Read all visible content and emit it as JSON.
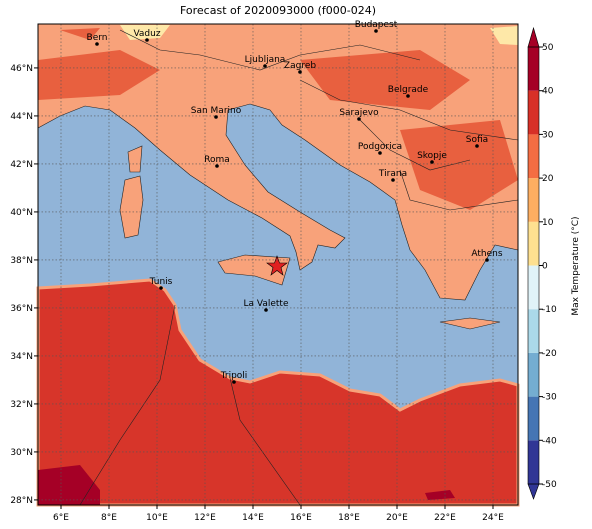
{
  "title": "Forecast of 2020093000 (f000-024)",
  "lon_ticks": [
    {
      "value": 6,
      "label": "6°E"
    },
    {
      "value": 8,
      "label": "8°E"
    },
    {
      "value": 10,
      "label": "10°E"
    },
    {
      "value": 12,
      "label": "12°E"
    },
    {
      "value": 14,
      "label": "14°E"
    },
    {
      "value": 16,
      "label": "16°E"
    },
    {
      "value": 18,
      "label": "18°E"
    },
    {
      "value": 20,
      "label": "20°E"
    },
    {
      "value": 22,
      "label": "22°E"
    },
    {
      "value": 24,
      "label": "24°E"
    }
  ],
  "lat_ticks": [
    {
      "value": 28,
      "label": "28°N"
    },
    {
      "value": 30,
      "label": "30°N"
    },
    {
      "value": 32,
      "label": "32°N"
    },
    {
      "value": 34,
      "label": "34°N"
    },
    {
      "value": 36,
      "label": "36°N"
    },
    {
      "value": 38,
      "label": "38°N"
    },
    {
      "value": 40,
      "label": "40°N"
    },
    {
      "value": 42,
      "label": "42°N"
    },
    {
      "value": 44,
      "label": "44°N"
    },
    {
      "value": 46,
      "label": "46°N"
    }
  ],
  "cities": [
    "Bern",
    "Vaduz",
    "Budapest",
    "Ljubljana",
    "Zagreb",
    "Belgrade",
    "San Marino",
    "Sarajevo",
    "Sofia",
    "Podgorica",
    "Skopje",
    "Roma",
    "Tirana",
    "Athens",
    "Tunis",
    "La Valette",
    "Tripoli"
  ],
  "colorbar": {
    "label": "Max Temperature (°C)",
    "ticks": [
      -50,
      -40,
      -30,
      -20,
      -10,
      0,
      10,
      20,
      30,
      40,
      50
    ],
    "colors": [
      "#313695",
      "#4575b4",
      "#74add1",
      "#abd9e9",
      "#e0f3f8",
      "#fee090",
      "#fdae61",
      "#f46d43",
      "#d73027",
      "#a50026"
    ]
  }
}
